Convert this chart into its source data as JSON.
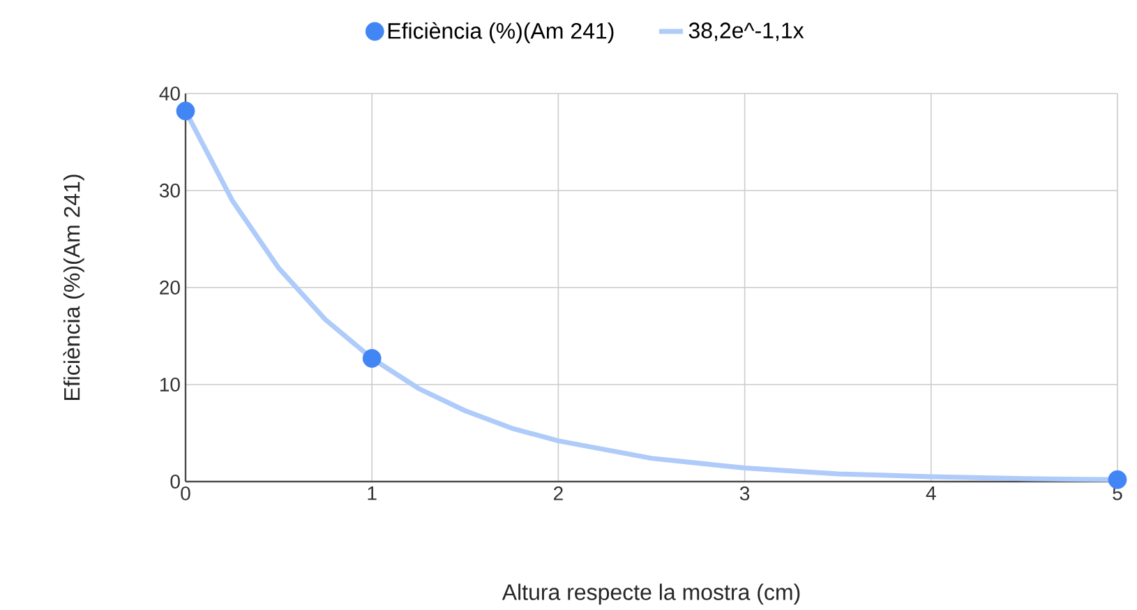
{
  "chart_data": {
    "type": "scatter",
    "xlabel": "Altura respecte la mostra (cm)",
    "ylabel": "Eficiència (%)(Am 241)",
    "xlim": [
      0,
      5
    ],
    "ylim": [
      0,
      40
    ],
    "xticks": [
      0,
      1,
      2,
      3,
      4,
      5
    ],
    "yticks": [
      0,
      10,
      20,
      30,
      40
    ],
    "grid": true,
    "legend": "top",
    "series": [
      {
        "name": "Eficiència (%)(Am 241)",
        "marker": "circle",
        "color": "#4285f4",
        "x": [
          0,
          1,
          5
        ],
        "values": [
          38.2,
          12.7,
          0.2
        ]
      },
      {
        "name": "38,2e^-1,1x",
        "type": "line",
        "marker": "none",
        "color": "#aecbfa",
        "x": [
          0,
          0.25,
          0.5,
          0.75,
          1,
          1.25,
          1.5,
          1.75,
          2,
          2.5,
          3,
          3.5,
          4,
          4.5,
          5
        ],
        "values": [
          38.2,
          29.0,
          22.0,
          16.7,
          12.7,
          9.6,
          7.3,
          5.5,
          4.2,
          2.4,
          1.4,
          0.8,
          0.5,
          0.3,
          0.2
        ]
      }
    ]
  }
}
